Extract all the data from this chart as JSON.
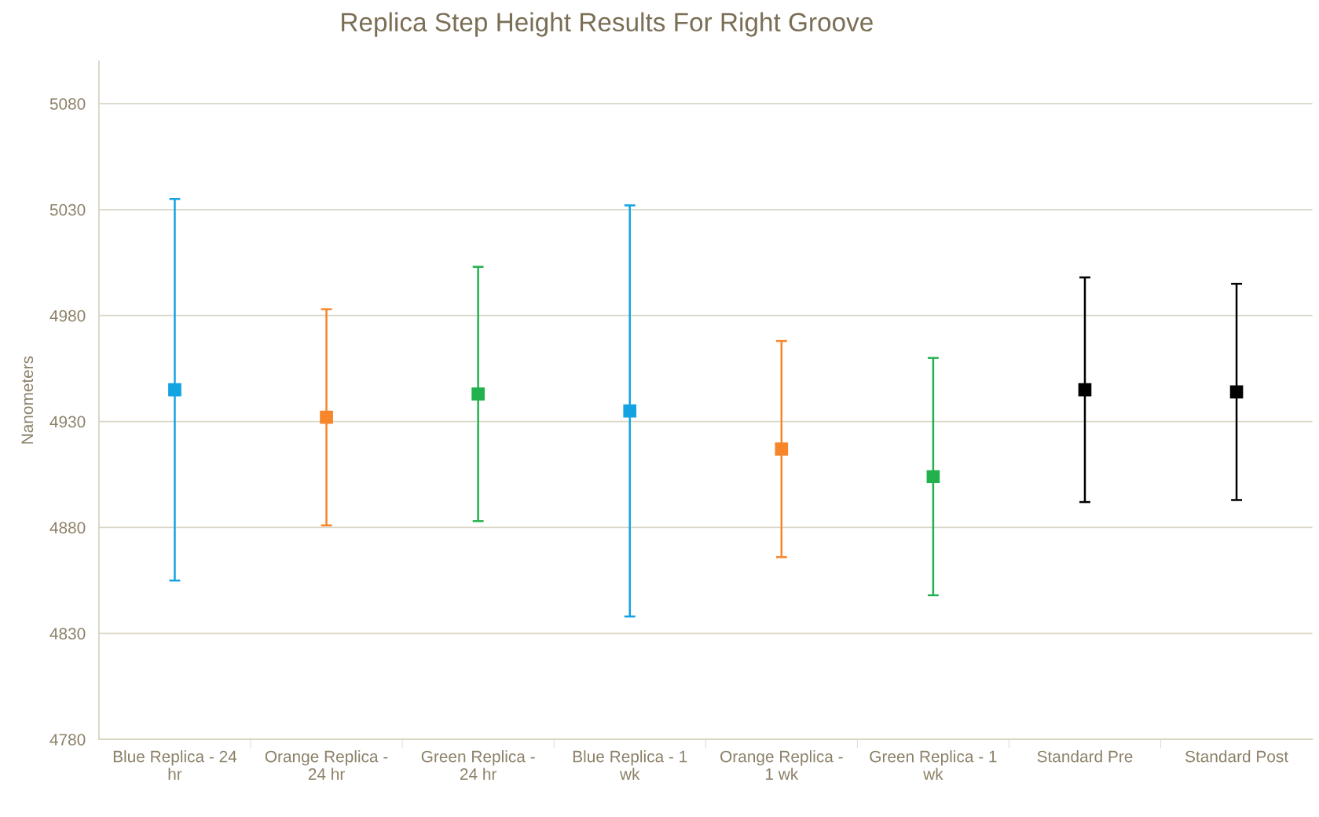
{
  "chart_data": {
    "type": "scatter",
    "title": "Replica Step Height Results For Right Groove",
    "ylabel": "Nanometers",
    "categories": [
      "Blue Replica - 24\nhr",
      "Orange Replica -\n24 hr",
      "Green Replica -\n24 hr",
      "Blue Replica - 1\nwk",
      "Orange Replica -\n1 wk",
      "Green Replica - 1\nwk",
      "Standard Pre",
      "Standard Post"
    ],
    "values": [
      4945,
      4932,
      4943,
      4935,
      4917,
      4904,
      4945,
      4944
    ],
    "errors": [
      90,
      51,
      60,
      97,
      51,
      56,
      53,
      51
    ],
    "colors": [
      "#13a3e3",
      "#f7862a",
      "#22b14c",
      "#13a3e3",
      "#f7862a",
      "#22b14c",
      "#000000",
      "#000000"
    ],
    "ylim": [
      4780,
      5100
    ],
    "yticks": [
      4780,
      4830,
      4880,
      4930,
      4980,
      5030,
      5080
    ],
    "grid": "y",
    "marker": "square"
  }
}
